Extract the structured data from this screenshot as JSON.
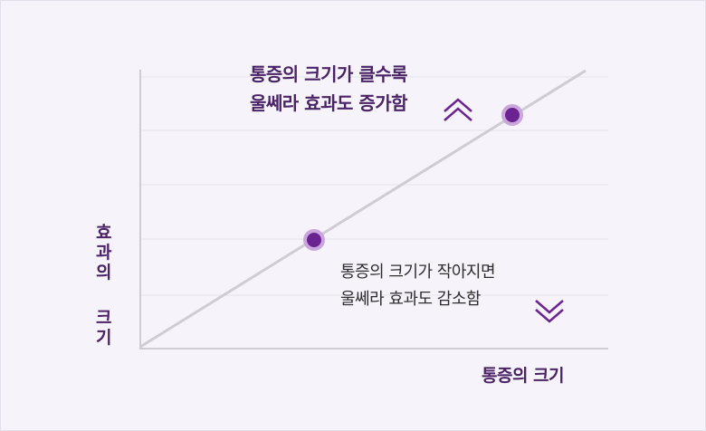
{
  "y_axis_label_top": "효과의",
  "y_axis_label_bottom": "크기",
  "x_axis_label": "통증의 크기",
  "upper_annotation": {
    "line1": "통증의 크기가 클수록",
    "line2": "울쎄라 효과도 증가함"
  },
  "lower_annotation": {
    "line1": "통증의 크기가 작아지면",
    "line2": "울쎄라 효과도 감소함"
  },
  "colors": {
    "accent": "#6a2391",
    "accent_light": "#c9a6dc",
    "line": "#cfcdd3",
    "gridline": "#e6e3ec",
    "text_dark": "#2d2d2d"
  }
}
